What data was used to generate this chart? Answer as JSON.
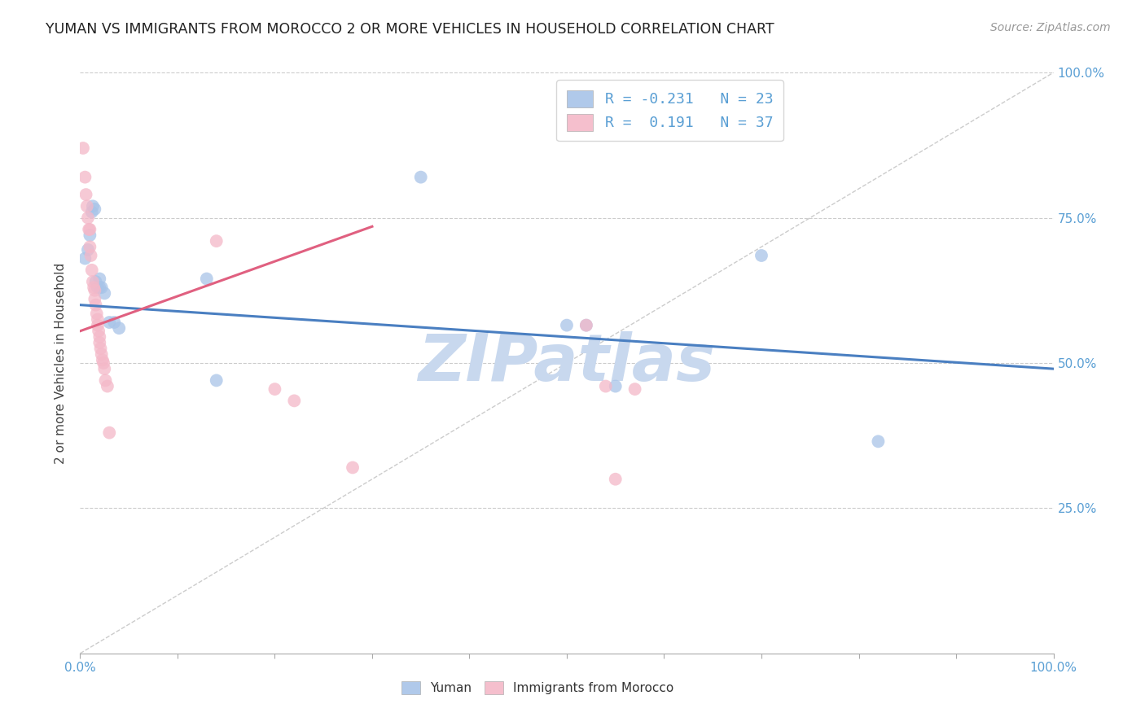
{
  "title": "YUMAN VS IMMIGRANTS FROM MOROCCO 2 OR MORE VEHICLES IN HOUSEHOLD CORRELATION CHART",
  "source": "Source: ZipAtlas.com",
  "ylabel": "2 or more Vehicles in Household",
  "xlim": [
    0,
    1.0
  ],
  "ylim": [
    0,
    1.0
  ],
  "legend1_r": "R = -0.231",
  "legend1_n": "N = 23",
  "legend2_r": "R =  0.191",
  "legend2_n": "N = 37",
  "legend1_color": "#a8c4e8",
  "legend2_color": "#f4b8c8",
  "watermark": "ZIPatlas",
  "blue_x": [
    0.005,
    0.008,
    0.01,
    0.012,
    0.013,
    0.015,
    0.016,
    0.018,
    0.02,
    0.02,
    0.022,
    0.025,
    0.03,
    0.035,
    0.04,
    0.13,
    0.14,
    0.35,
    0.5,
    0.52,
    0.55,
    0.7,
    0.82
  ],
  "blue_y": [
    0.68,
    0.695,
    0.72,
    0.76,
    0.77,
    0.765,
    0.64,
    0.63,
    0.63,
    0.645,
    0.63,
    0.62,
    0.57,
    0.57,
    0.56,
    0.645,
    0.47,
    0.82,
    0.565,
    0.565,
    0.46,
    0.685,
    0.365
  ],
  "pink_x": [
    0.003,
    0.005,
    0.006,
    0.007,
    0.008,
    0.009,
    0.01,
    0.01,
    0.011,
    0.012,
    0.013,
    0.014,
    0.015,
    0.015,
    0.016,
    0.017,
    0.018,
    0.018,
    0.019,
    0.02,
    0.02,
    0.021,
    0.022,
    0.023,
    0.024,
    0.025,
    0.026,
    0.028,
    0.03,
    0.14,
    0.2,
    0.22,
    0.28,
    0.52,
    0.54,
    0.55,
    0.57
  ],
  "pink_y": [
    0.87,
    0.82,
    0.79,
    0.77,
    0.75,
    0.73,
    0.73,
    0.7,
    0.685,
    0.66,
    0.64,
    0.63,
    0.625,
    0.61,
    0.6,
    0.585,
    0.575,
    0.565,
    0.555,
    0.545,
    0.535,
    0.525,
    0.515,
    0.505,
    0.5,
    0.49,
    0.47,
    0.46,
    0.38,
    0.71,
    0.455,
    0.435,
    0.32,
    0.565,
    0.46,
    0.3,
    0.455
  ],
  "blue_line_x": [
    0.0,
    1.0
  ],
  "blue_line_y": [
    0.6,
    0.49
  ],
  "pink_line_x": [
    0.0,
    0.3
  ],
  "pink_line_y": [
    0.555,
    0.735
  ],
  "diag_line_x": [
    0.0,
    1.0
  ],
  "diag_line_y": [
    0.0,
    1.0
  ],
  "background_color": "#ffffff",
  "grid_color": "#cccccc",
  "title_color": "#222222",
  "axis_label_color": "#444444",
  "tick_color": "#5a9fd4",
  "watermark_color": "#c8d8ee"
}
